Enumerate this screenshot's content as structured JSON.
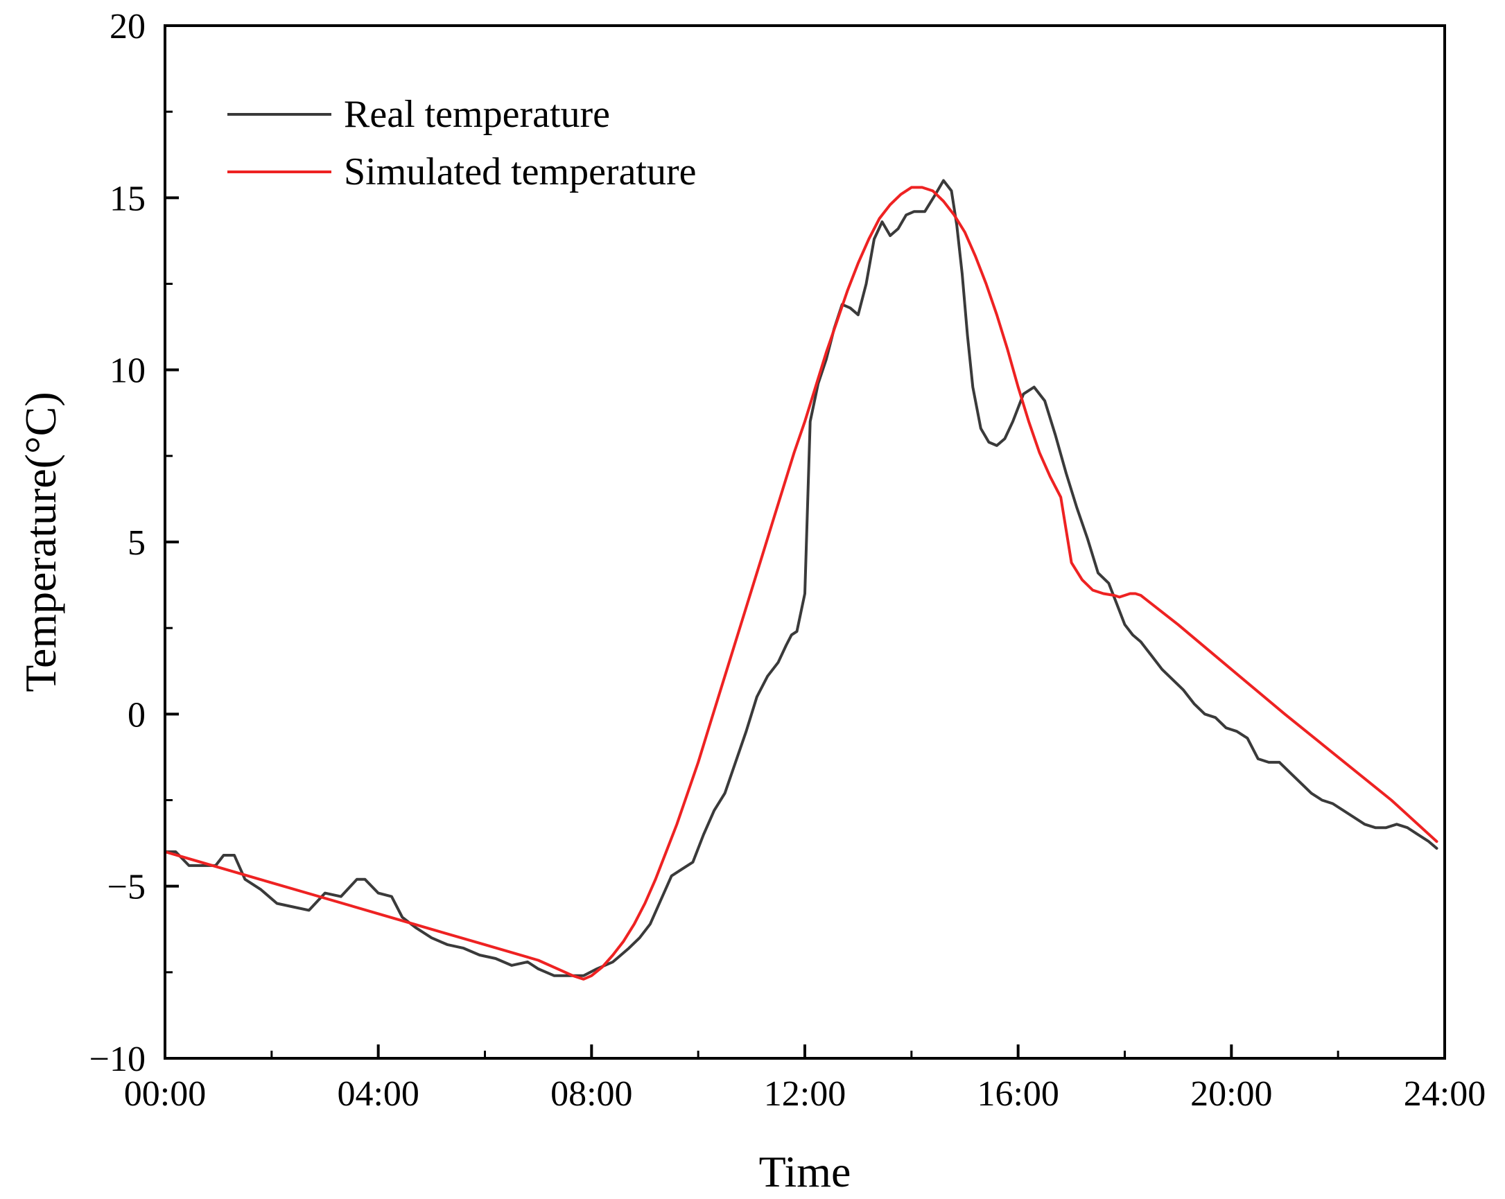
{
  "chart_data": {
    "type": "line",
    "title": "",
    "xlabel": "Time",
    "ylabel": "Temperature(°C)",
    "xlim": [
      0,
      24
    ],
    "ylim": [
      -10,
      20
    ],
    "grid": false,
    "legend_position": "top-left",
    "x_tick_values": [
      0,
      4,
      8,
      12,
      16,
      20,
      24
    ],
    "x_tick_labels": [
      "00:00",
      "04:00",
      "08:00",
      "12:00",
      "16:00",
      "20:00",
      "24:00"
    ],
    "x_minor_ticks": [
      2,
      6,
      10,
      14,
      18,
      22
    ],
    "y_tick_values": [
      -10,
      -5,
      0,
      5,
      10,
      15,
      20
    ],
    "y_tick_labels": [
      "−10",
      "−5",
      "0",
      "5",
      "10",
      "15",
      "20"
    ],
    "y_minor_ticks": [
      -7.5,
      -2.5,
      2.5,
      7.5,
      12.5,
      17.5
    ],
    "series": [
      {
        "name": "Real temperature",
        "color": "#3a3a3a",
        "x": [
          0.0,
          0.2,
          0.45,
          0.7,
          0.95,
          1.1,
          1.3,
          1.5,
          1.8,
          2.1,
          2.4,
          2.7,
          3.0,
          3.3,
          3.6,
          3.75,
          4.0,
          4.25,
          4.45,
          4.7,
          5.0,
          5.3,
          5.6,
          5.9,
          6.2,
          6.5,
          6.8,
          7.0,
          7.3,
          7.6,
          7.85,
          8.1,
          8.4,
          8.7,
          8.9,
          9.1,
          9.3,
          9.5,
          9.7,
          9.9,
          10.1,
          10.3,
          10.5,
          10.7,
          10.9,
          11.1,
          11.3,
          11.5,
          11.65,
          11.75,
          11.85,
          12.0,
          12.1,
          12.25,
          12.4,
          12.55,
          12.7,
          12.85,
          13.0,
          13.15,
          13.3,
          13.45,
          13.6,
          13.75,
          13.9,
          14.05,
          14.25,
          14.45,
          14.6,
          14.75,
          14.85,
          14.95,
          15.05,
          15.15,
          15.3,
          15.45,
          15.6,
          15.75,
          15.9,
          16.1,
          16.3,
          16.5,
          16.7,
          16.9,
          17.1,
          17.3,
          17.5,
          17.7,
          17.85,
          18.0,
          18.15,
          18.3,
          18.5,
          18.7,
          18.9,
          19.1,
          19.3,
          19.5,
          19.7,
          19.9,
          20.1,
          20.3,
          20.5,
          20.7,
          20.9,
          21.1,
          21.3,
          21.5,
          21.7,
          21.9,
          22.1,
          22.3,
          22.5,
          22.7,
          22.9,
          23.1,
          23.3,
          23.5,
          23.7,
          23.85
        ],
        "values": [
          -4.0,
          -4.0,
          -4.4,
          -4.4,
          -4.4,
          -4.1,
          -4.1,
          -4.8,
          -5.1,
          -5.5,
          -5.6,
          -5.7,
          -5.2,
          -5.3,
          -4.8,
          -4.8,
          -5.2,
          -5.3,
          -5.9,
          -6.2,
          -6.5,
          -6.7,
          -6.8,
          -7.0,
          -7.1,
          -7.3,
          -7.2,
          -7.4,
          -7.6,
          -7.6,
          -7.6,
          -7.4,
          -7.2,
          -6.8,
          -6.5,
          -6.1,
          -5.4,
          -4.7,
          -4.5,
          -4.3,
          -3.5,
          -2.8,
          -2.3,
          -1.4,
          -0.5,
          0.5,
          1.1,
          1.5,
          2.0,
          2.3,
          2.4,
          3.5,
          8.5,
          9.6,
          10.3,
          11.2,
          11.9,
          11.8,
          11.6,
          12.5,
          13.8,
          14.3,
          13.9,
          14.1,
          14.5,
          14.6,
          14.6,
          15.1,
          15.5,
          15.2,
          14.2,
          12.8,
          11.0,
          9.5,
          8.3,
          7.9,
          7.8,
          8.0,
          8.5,
          9.3,
          9.5,
          9.1,
          8.1,
          7.0,
          6.0,
          5.1,
          4.1,
          3.8,
          3.2,
          2.6,
          2.3,
          2.1,
          1.7,
          1.3,
          1.0,
          0.7,
          0.3,
          0.0,
          -0.1,
          -0.4,
          -0.5,
          -0.7,
          -1.3,
          -1.4,
          -1.4,
          -1.7,
          -2.0,
          -2.3,
          -2.5,
          -2.6,
          -2.8,
          -3.0,
          -3.2,
          -3.3,
          -3.3,
          -3.2,
          -3.3,
          -3.5,
          -3.7,
          -3.9
        ]
      },
      {
        "name": "Simulated temperature",
        "color": "#ee2222",
        "x": [
          0.0,
          1.0,
          2.0,
          3.0,
          4.0,
          5.0,
          6.0,
          7.0,
          7.65,
          7.85,
          8.0,
          8.2,
          8.4,
          8.6,
          8.8,
          9.0,
          9.2,
          9.4,
          9.6,
          9.8,
          10.0,
          10.2,
          10.4,
          10.6,
          10.8,
          11.0,
          11.2,
          11.4,
          11.6,
          11.8,
          12.0,
          12.2,
          12.4,
          12.6,
          12.8,
          13.0,
          13.2,
          13.4,
          13.6,
          13.8,
          14.0,
          14.2,
          14.4,
          14.6,
          14.8,
          15.0,
          15.2,
          15.4,
          15.6,
          15.8,
          16.0,
          16.2,
          16.4,
          16.6,
          16.8,
          17.0,
          17.2,
          17.4,
          17.6,
          17.8,
          17.9,
          18.0,
          18.1,
          18.2,
          18.3,
          19.0,
          20.0,
          21.0,
          22.0,
          23.0,
          23.85
        ],
        "values": [
          -4.0,
          -4.45,
          -4.9,
          -5.35,
          -5.8,
          -6.25,
          -6.7,
          -7.15,
          -7.6,
          -7.7,
          -7.6,
          -7.35,
          -7.0,
          -6.6,
          -6.1,
          -5.5,
          -4.8,
          -4.0,
          -3.2,
          -2.3,
          -1.4,
          -0.4,
          0.6,
          1.6,
          2.6,
          3.6,
          4.6,
          5.6,
          6.6,
          7.6,
          8.5,
          9.5,
          10.5,
          11.4,
          12.3,
          13.1,
          13.8,
          14.4,
          14.8,
          15.1,
          15.3,
          15.3,
          15.2,
          14.9,
          14.5,
          14.0,
          13.3,
          12.5,
          11.6,
          10.6,
          9.5,
          8.5,
          7.6,
          6.9,
          6.3,
          4.4,
          3.9,
          3.6,
          3.5,
          3.45,
          3.4,
          3.45,
          3.5,
          3.5,
          3.45,
          2.6,
          1.3,
          0.0,
          -1.25,
          -2.5,
          -3.7
        ]
      }
    ]
  }
}
